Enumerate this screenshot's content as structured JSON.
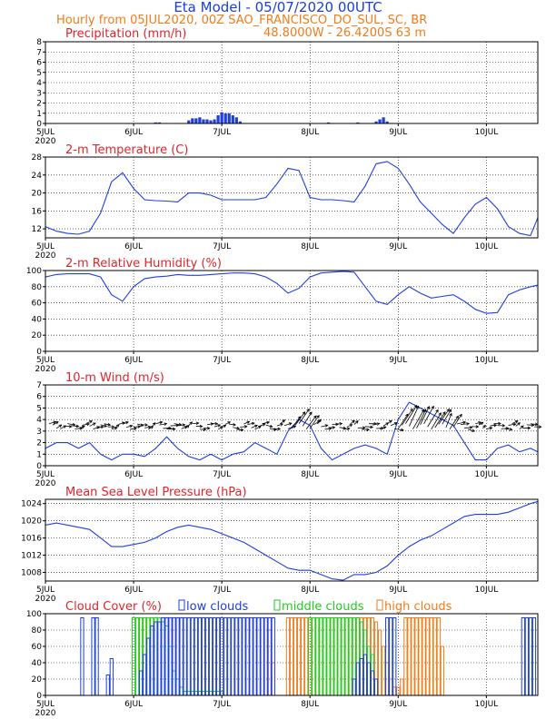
{
  "header": {
    "title": "Eta Model - 05/07/2020 00UTC",
    "line1": "Hourly from 05JUL2020, 00Z  SAO_FRANCISCO_DO_SUL, SC, BR",
    "line2": "48.8000W - 26.4200S     63  m"
  },
  "colors": {
    "series": "#1f3fe0",
    "title": "#e3242b",
    "orange": "#f07c1c",
    "green": "#22cc22",
    "arrow": "#000000"
  },
  "chart_data": [
    {
      "type": "bar",
      "title": "Precipitation (mm/h)",
      "x_unit": "hours since 05JUL2020 00Z",
      "x_ticks": [
        {
          "x": 0,
          "label": "5JUL",
          "sub": "2020"
        },
        {
          "x": 24,
          "label": "6JUL"
        },
        {
          "x": 48,
          "label": "7JUL"
        },
        {
          "x": 72,
          "label": "8JUL"
        },
        {
          "x": 96,
          "label": "9JUL"
        },
        {
          "x": 120,
          "label": "10JUL"
        }
      ],
      "xlim": [
        0,
        134
      ],
      "ylim": [
        0,
        8
      ],
      "y_ticks": [
        0,
        1,
        2,
        3,
        4,
        5,
        6,
        7,
        8
      ],
      "x": [
        30,
        31,
        39,
        40,
        41,
        42,
        43,
        44,
        45,
        46,
        47,
        48,
        49,
        50,
        51,
        52,
        53,
        77,
        85,
        90,
        91,
        92,
        93
      ],
      "values": [
        0.1,
        0.1,
        0.3,
        0.5,
        0.5,
        0.6,
        0.4,
        0.4,
        0.3,
        0.4,
        0.8,
        1.1,
        1.0,
        1.0,
        0.8,
        0.6,
        0.2,
        0.1,
        0.1,
        0.2,
        0.4,
        0.6,
        0.2
      ]
    },
    {
      "type": "line",
      "title": "2-m Temperature (C)",
      "x_ticks": [
        {
          "x": 0,
          "label": "5JUL",
          "sub": "2020"
        },
        {
          "x": 24,
          "label": "6JUL"
        },
        {
          "x": 48,
          "label": "7JUL"
        },
        {
          "x": 72,
          "label": "8JUL"
        },
        {
          "x": 96,
          "label": "9JUL"
        },
        {
          "x": 120,
          "label": "10JUL"
        }
      ],
      "xlim": [
        0,
        134
      ],
      "ylim": [
        10,
        28
      ],
      "y_ticks": [
        12,
        16,
        20,
        24,
        28
      ],
      "x": [
        0,
        3,
        6,
        9,
        12,
        15,
        18,
        21,
        24,
        27,
        30,
        33,
        36,
        39,
        42,
        45,
        48,
        51,
        54,
        57,
        60,
        63,
        66,
        69,
        72,
        75,
        78,
        81,
        84,
        87,
        90,
        93,
        96,
        99,
        102,
        105,
        108,
        111,
        114,
        117,
        120,
        123,
        126,
        129,
        132,
        134
      ],
      "values": [
        12.5,
        11.5,
        11.0,
        10.8,
        11.5,
        15.5,
        22.5,
        24.5,
        21.0,
        18.5,
        18.3,
        18.2,
        18.0,
        20.0,
        20.0,
        19.5,
        18.5,
        18.5,
        18.5,
        18.5,
        19.0,
        22.0,
        25.5,
        25.0,
        19.0,
        18.5,
        18.5,
        18.3,
        18.0,
        21.5,
        26.5,
        27.0,
        25.5,
        22.0,
        18.0,
        15.5,
        13.0,
        11.0,
        14.5,
        17.5,
        19.0,
        16.5,
        12.5,
        11.0,
        10.5,
        14.5
      ]
    },
    {
      "type": "line",
      "title": "2-m Relative Humidity (%)",
      "x_ticks": [
        {
          "x": 0,
          "label": "5JUL",
          "sub": "2020"
        },
        {
          "x": 24,
          "label": "6JUL"
        },
        {
          "x": 48,
          "label": "7JUL"
        },
        {
          "x": 72,
          "label": "8JUL"
        },
        {
          "x": 96,
          "label": "9JUL"
        },
        {
          "x": 120,
          "label": "10JUL"
        }
      ],
      "xlim": [
        0,
        134
      ],
      "ylim": [
        0,
        100
      ],
      "y_ticks": [
        0,
        20,
        40,
        60,
        80,
        100
      ],
      "x": [
        0,
        3,
        6,
        9,
        12,
        15,
        18,
        21,
        24,
        27,
        30,
        33,
        36,
        39,
        42,
        45,
        48,
        51,
        54,
        57,
        60,
        63,
        66,
        69,
        72,
        75,
        78,
        81,
        84,
        87,
        90,
        93,
        96,
        99,
        102,
        105,
        108,
        111,
        114,
        117,
        120,
        123,
        126,
        129,
        132,
        134
      ],
      "values": [
        92,
        95,
        96,
        96,
        96,
        92,
        70,
        62,
        80,
        90,
        92,
        93,
        95,
        94,
        94,
        95,
        96,
        97,
        97,
        96,
        92,
        84,
        72,
        78,
        92,
        97,
        98,
        99,
        98,
        80,
        62,
        58,
        70,
        80,
        72,
        66,
        68,
        70,
        62,
        52,
        47,
        48,
        70,
        76,
        80,
        82
      ]
    },
    {
      "type": "line",
      "title": "10-m Wind (m/s)",
      "note": "wind vectors (arrows) drawn at wind speed; blue line shows speed",
      "x_ticks": [
        {
          "x": 0,
          "label": "5JUL",
          "sub": "2020"
        },
        {
          "x": 24,
          "label": "6JUL"
        },
        {
          "x": 48,
          "label": "7JUL"
        },
        {
          "x": 72,
          "label": "8JUL"
        },
        {
          "x": 96,
          "label": "9JUL"
        },
        {
          "x": 120,
          "label": "10JUL"
        }
      ],
      "xlim": [
        0,
        134
      ],
      "ylim": [
        0,
        7
      ],
      "y_ticks": [
        0,
        1,
        2,
        3,
        4,
        5,
        6,
        7
      ],
      "x": [
        0,
        3,
        6,
        9,
        12,
        15,
        18,
        21,
        24,
        27,
        30,
        33,
        36,
        39,
        42,
        45,
        48,
        51,
        54,
        57,
        60,
        63,
        66,
        69,
        72,
        75,
        78,
        81,
        84,
        87,
        90,
        93,
        96,
        99,
        102,
        105,
        108,
        111,
        114,
        117,
        120,
        123,
        126,
        129,
        132,
        134
      ],
      "values": [
        1.5,
        2.0,
        2.0,
        1.5,
        2.0,
        1.0,
        0.5,
        1.0,
        1.0,
        0.8,
        1.5,
        2.5,
        1.5,
        0.8,
        0.5,
        1.0,
        0.5,
        1.0,
        1.2,
        2.0,
        1.5,
        1.0,
        3.0,
        4.0,
        3.5,
        1.5,
        0.5,
        1.0,
        1.5,
        1.8,
        1.5,
        1.0,
        4.0,
        5.5,
        5.0,
        4.5,
        4.0,
        3.5,
        2.0,
        0.5,
        0.5,
        1.5,
        1.8,
        1.2,
        1.5,
        1.2
      ],
      "arrow_baseline": 3.4
    },
    {
      "type": "line",
      "title": "Mean Sea Level Pressure (hPa)",
      "x_ticks": [
        {
          "x": 0,
          "label": "5JUL",
          "sub": "2020"
        },
        {
          "x": 24,
          "label": "6JUL"
        },
        {
          "x": 48,
          "label": "7JUL"
        },
        {
          "x": 72,
          "label": "8JUL"
        },
        {
          "x": 96,
          "label": "9JUL"
        },
        {
          "x": 120,
          "label": "10JUL"
        }
      ],
      "xlim": [
        0,
        134
      ],
      "ylim": [
        1006,
        1025
      ],
      "y_ticks": [
        1008,
        1012,
        1016,
        1020,
        1024
      ],
      "x": [
        0,
        3,
        6,
        9,
        12,
        15,
        18,
        21,
        24,
        27,
        30,
        33,
        36,
        39,
        42,
        45,
        48,
        51,
        54,
        57,
        60,
        63,
        66,
        69,
        72,
        75,
        78,
        81,
        84,
        87,
        90,
        93,
        96,
        99,
        102,
        105,
        108,
        111,
        114,
        117,
        120,
        123,
        126,
        129,
        132,
        134
      ],
      "values": [
        1019,
        1019.5,
        1019,
        1018.5,
        1018,
        1016,
        1014,
        1014,
        1014.5,
        1015,
        1016,
        1017.5,
        1018.5,
        1019,
        1018.5,
        1018,
        1017,
        1016,
        1015,
        1013.5,
        1012,
        1010.5,
        1009,
        1008.5,
        1008.5,
        1007.5,
        1006.5,
        1006.2,
        1007.5,
        1007.5,
        1008,
        1009.5,
        1012,
        1014,
        1015.5,
        1016.5,
        1018,
        1019.5,
        1021,
        1021.5,
        1021.5,
        1021.5,
        1022,
        1023,
        1024,
        1024.5
      ]
    },
    {
      "type": "bar",
      "title": "Cloud Cover (%)",
      "legend": [
        "low clouds",
        "middle clouds",
        "high clouds"
      ],
      "x_ticks": [
        {
          "x": 0,
          "label": "5JUL",
          "sub": "2020"
        },
        {
          "x": 24,
          "label": "6JUL"
        },
        {
          "x": 48,
          "label": "7JUL"
        },
        {
          "x": 72,
          "label": "8JUL"
        },
        {
          "x": 96,
          "label": "9JUL"
        },
        {
          "x": 120,
          "label": "10JUL"
        }
      ],
      "xlim": [
        0,
        134
      ],
      "ylim": [
        0,
        100
      ],
      "y_ticks": [
        0,
        20,
        40,
        60,
        80,
        100
      ],
      "low_x": [
        10,
        13,
        14,
        17,
        18,
        26,
        27,
        28,
        29,
        30,
        31,
        32,
        33,
        34,
        35,
        36,
        37,
        38,
        39,
        40,
        41,
        42,
        43,
        44,
        45,
        46,
        47,
        48,
        49,
        50,
        51,
        52,
        53,
        54,
        55,
        56,
        57,
        58,
        59,
        60,
        61,
        62,
        84,
        85,
        86,
        87,
        88,
        89,
        90,
        93,
        94,
        95,
        130,
        131,
        132,
        133
      ],
      "low_values": [
        95,
        95,
        95,
        25,
        45,
        30,
        50,
        70,
        85,
        90,
        90,
        95,
        95,
        95,
        95,
        95,
        95,
        95,
        95,
        95,
        95,
        95,
        95,
        95,
        95,
        95,
        95,
        95,
        95,
        95,
        95,
        95,
        95,
        95,
        95,
        95,
        95,
        95,
        95,
        95,
        95,
        95,
        20,
        40,
        45,
        50,
        40,
        30,
        20,
        95,
        95,
        95,
        95,
        95,
        95,
        95
      ],
      "mid_x": [
        24,
        25,
        26,
        27,
        28,
        29,
        30,
        31,
        32,
        33,
        34,
        35,
        36,
        37,
        38,
        39,
        40,
        41,
        42,
        43,
        44,
        45,
        46,
        47,
        48,
        72,
        73,
        74,
        75,
        76,
        77,
        78,
        79,
        80,
        81,
        82,
        83,
        84,
        85,
        86,
        87,
        88,
        89
      ],
      "mid_values": [
        95,
        95,
        95,
        95,
        95,
        95,
        95,
        95,
        90,
        85,
        60,
        30,
        20,
        10,
        5,
        5,
        5,
        5,
        5,
        5,
        5,
        5,
        5,
        5,
        5,
        95,
        95,
        95,
        95,
        95,
        95,
        95,
        95,
        95,
        95,
        95,
        95,
        95,
        95,
        90,
        80,
        60,
        50
      ],
      "high_x": [
        25,
        26,
        27,
        28,
        29,
        30,
        31,
        32,
        33,
        34,
        35,
        36,
        60,
        61,
        62,
        66,
        67,
        68,
        69,
        70,
        71,
        72,
        73,
        74,
        75,
        76,
        77,
        78,
        79,
        80,
        81,
        82,
        83,
        84,
        85,
        86,
        87,
        88,
        89,
        90,
        91,
        92,
        93,
        94,
        95,
        96,
        97,
        98,
        99,
        100,
        101,
        102,
        103,
        104,
        105,
        106,
        107,
        108
      ],
      "high_values": [
        95,
        95,
        95,
        95,
        95,
        95,
        95,
        95,
        95,
        95,
        95,
        95,
        95,
        80,
        40,
        95,
        95,
        95,
        95,
        95,
        95,
        95,
        95,
        95,
        95,
        95,
        95,
        95,
        95,
        95,
        95,
        95,
        95,
        95,
        95,
        95,
        95,
        95,
        95,
        90,
        80,
        60,
        40,
        20,
        10,
        10,
        20,
        95,
        95,
        95,
        95,
        95,
        95,
        95,
        95,
        95,
        95,
        60
      ]
    }
  ]
}
